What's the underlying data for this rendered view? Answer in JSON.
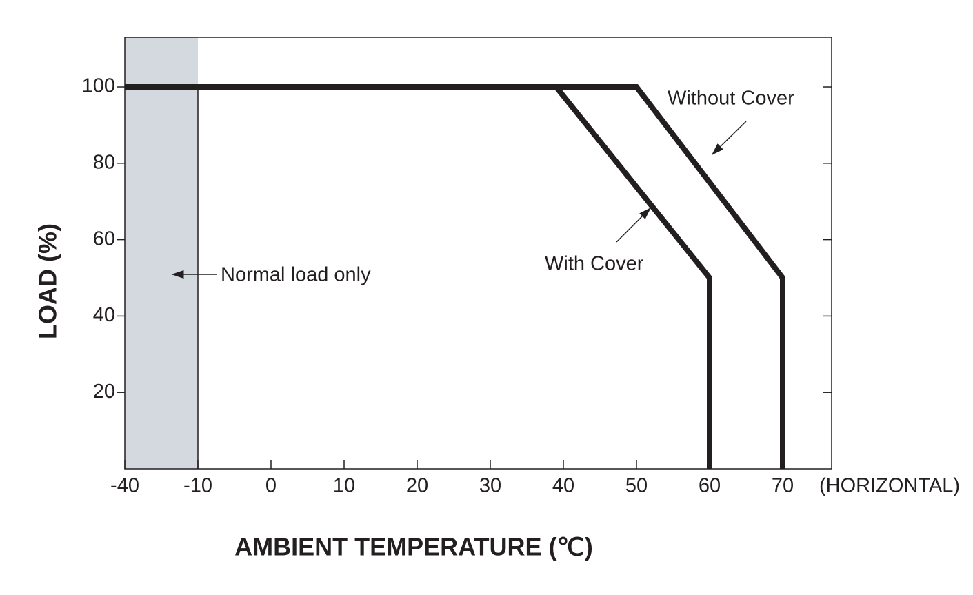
{
  "chart_data": {
    "type": "line",
    "x_label": "AMBIENT TEMPERATURE (℃)",
    "y_label": "LOAD (%)",
    "x_note": "(HORIZONTAL)",
    "xlim": [
      -40,
      76.7
    ],
    "ylim": [
      0,
      113
    ],
    "xticks": [
      -40,
      -10,
      0,
      10,
      20,
      30,
      40,
      50,
      60,
      70
    ],
    "yticks": [
      20,
      40,
      60,
      80,
      100
    ],
    "shaded_region": {
      "x": [
        -40,
        -10
      ],
      "label": "Normal load only",
      "color": "#d3d9df"
    },
    "series": [
      {
        "name": "Without Cover",
        "color": "#231f20",
        "x": [
          -40,
          50,
          70,
          70
        ],
        "values": [
          100,
          100,
          50,
          0
        ]
      },
      {
        "name": "With Cover",
        "color": "#231f20",
        "x": [
          -40,
          39,
          60,
          60
        ],
        "values": [
          100,
          100,
          50,
          0
        ]
      }
    ]
  }
}
